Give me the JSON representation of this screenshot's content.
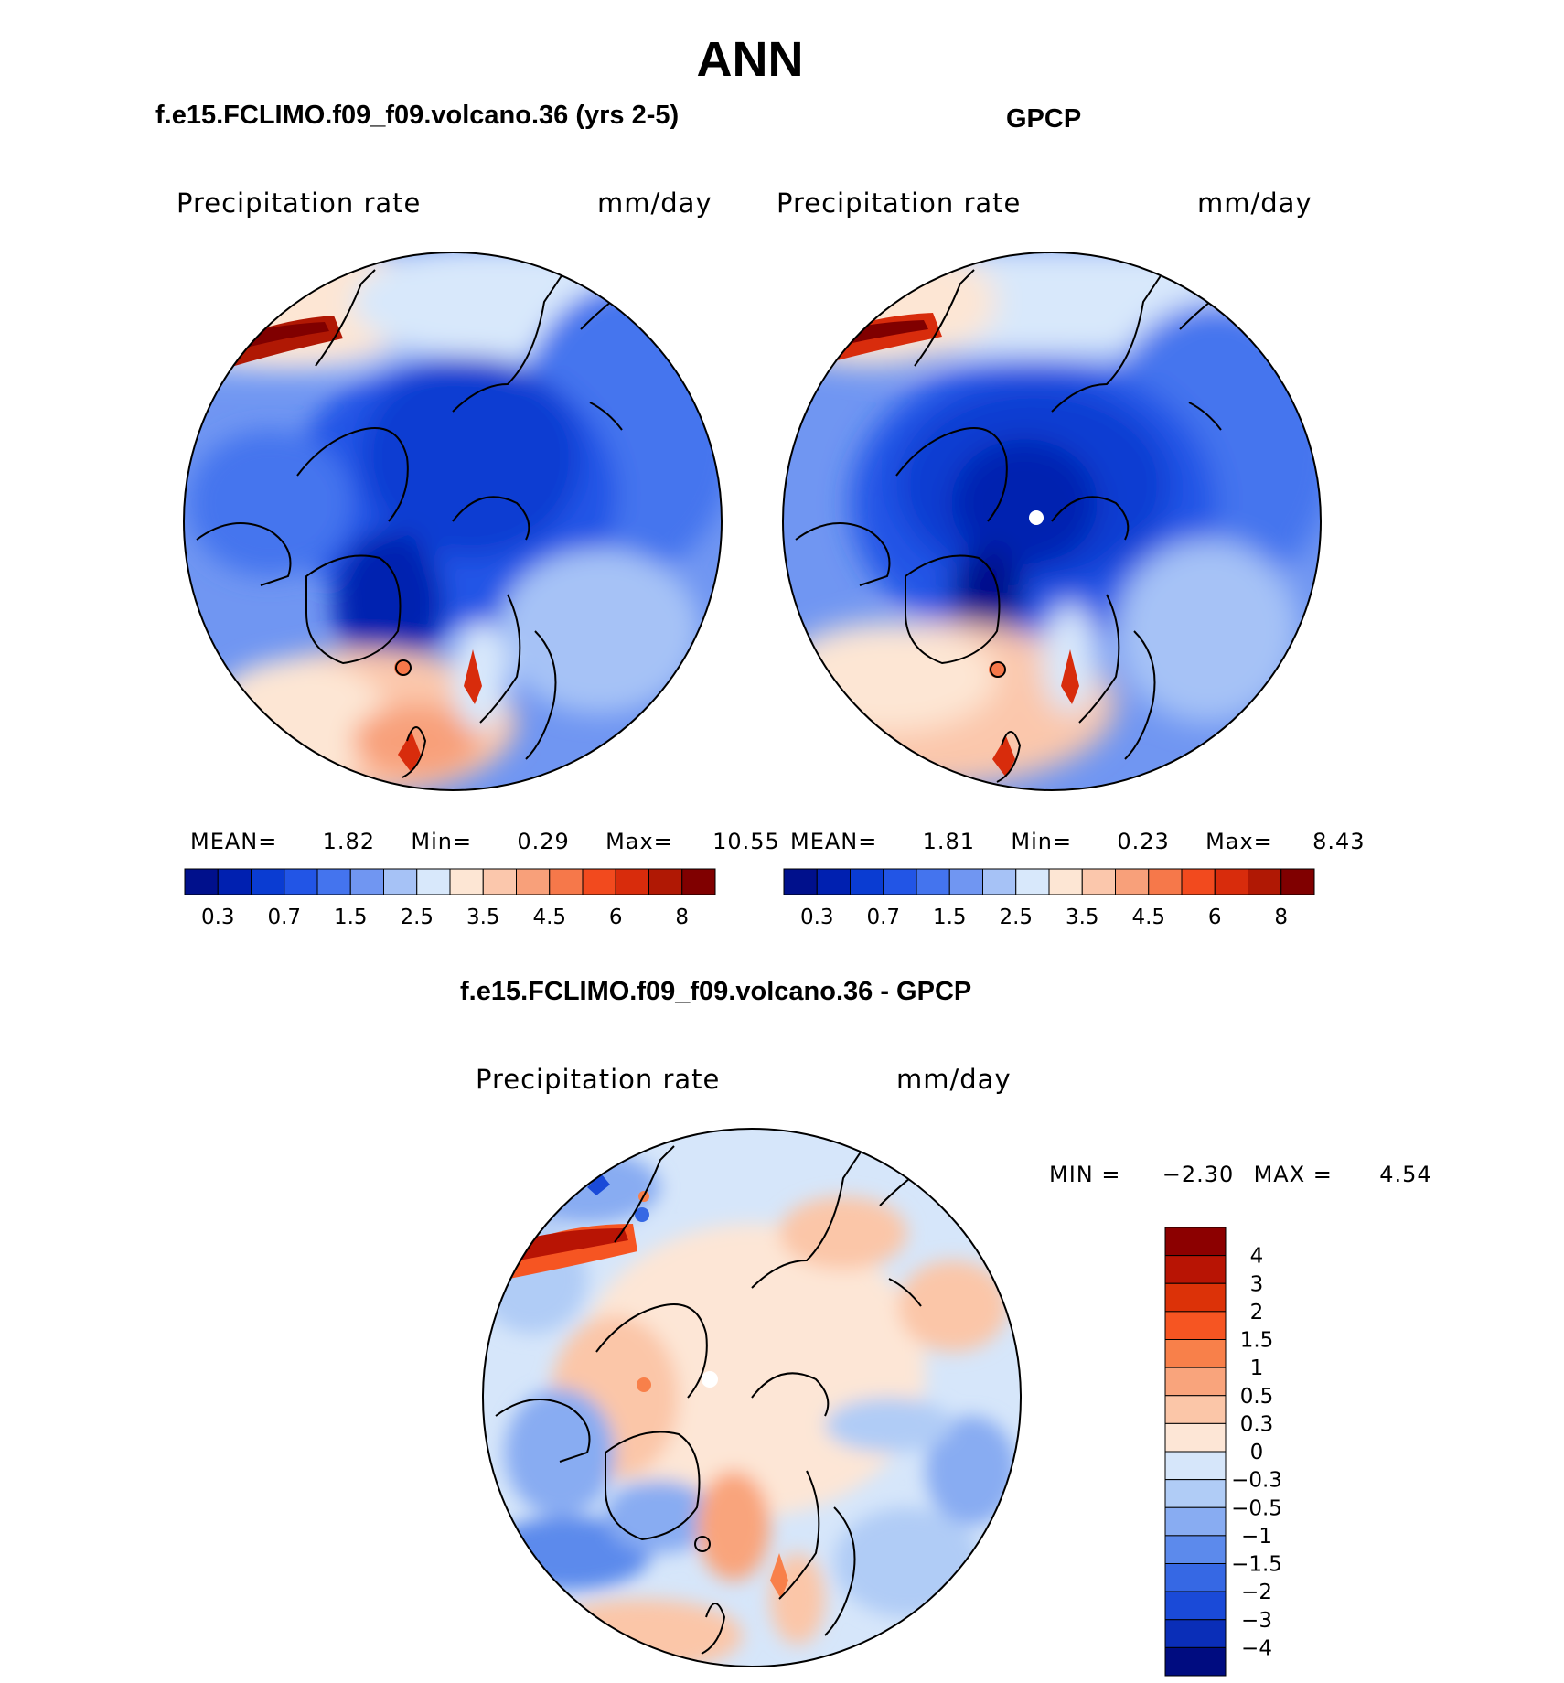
{
  "page_title": "ANN",
  "panels": [
    {
      "title": "f.e15.FCLIMO.f09_f09.volcano.36 (yrs 2-5)",
      "variable": "Precipitation rate",
      "units": "mm/day",
      "stats": {
        "mean_label": "MEAN=",
        "mean": "1.82",
        "min_label": "Min=",
        "min": "0.29",
        "max_label": "Max=",
        "max": "10.55"
      }
    },
    {
      "title": "GPCP",
      "variable": "Precipitation rate",
      "units": "mm/day",
      "stats": {
        "mean_label": "MEAN=",
        "mean": "1.81",
        "min_label": "Min=",
        "min": "0.23",
        "max_label": "Max=",
        "max": "8.43"
      }
    }
  ],
  "abs_colorbar": {
    "colors": [
      "#00108c",
      "#0020b0",
      "#0a3cd2",
      "#2255e6",
      "#4474ee",
      "#7096f2",
      "#a6c2f6",
      "#d8e8fb",
      "#fde6d4",
      "#fbc7ac",
      "#f8a07a",
      "#f6784a",
      "#f24a1e",
      "#d82c0c",
      "#b01804",
      "#800000"
    ],
    "labels": [
      "0.3",
      "0.7",
      "1.5",
      "2.5",
      "3.5",
      "4.5",
      "6",
      "8"
    ]
  },
  "difference": {
    "title": "f.e15.FCLIMO.f09_f09.volcano.36 - GPCP",
    "variable": "Precipitation rate",
    "units": "mm/day",
    "min_label": "MIN =",
    "min": "−2.30",
    "max_label": "MAX =",
    "max": "4.54",
    "colorbar": {
      "colors_top_to_bottom": [
        "#8c0000",
        "#b81404",
        "#dc3208",
        "#f65522",
        "#f8804a",
        "#f9a47c",
        "#fbc6a8",
        "#fde6d6",
        "#d6e6fa",
        "#b0ccf6",
        "#88acf2",
        "#5c8aec",
        "#3668e4",
        "#1a4ad8",
        "#0a2eb8",
        "#000c80"
      ],
      "labels": [
        "4",
        "3",
        "2",
        "1.5",
        "1",
        "0.5",
        "0.3",
        "0",
        "−0.3",
        "−0.5",
        "−1",
        "−1.5",
        "−2",
        "−3",
        "−4"
      ]
    }
  }
}
